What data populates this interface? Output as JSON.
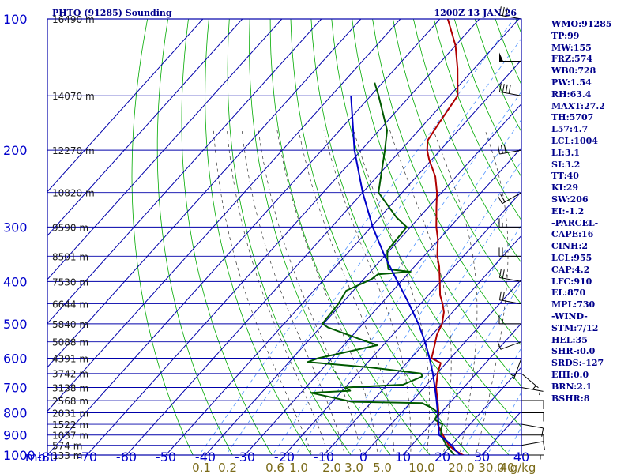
{
  "header": {
    "title": "PHTO (91285) Sounding",
    "time": "1200Z 13 JAN 26"
  },
  "stats": [
    "WMO:91285",
    "TP:99",
    "MW:155",
    "FRZ:574",
    "WB0:728",
    "PW:1.54",
    "RH:63.4",
    "MAXT:27.2",
    "TH:5707",
    "L57:4.7",
    "LCL:1004",
    "LI:3.1",
    "SI:3.2",
    "TT:40",
    "KI:29",
    "SW:206",
    "EI:-1.2",
    "-PARCEL-",
    "CAPE:16",
    "CINH:2",
    "LCL:955",
    "CAP:4.2",
    "LFC:910",
    "EL:870",
    "MPL:730",
    "-WIND-",
    "STM:7/12",
    "HEL:35",
    "SHR-:0.0",
    "SRDS:-127",
    "EHI:0.0",
    "BRN:2.1",
    "BSHR:8"
  ],
  "colors": {
    "frame": "#0000aa",
    "temperature": "#b00000",
    "dewpoint": "#005a00",
    "parcel": "#0000c8",
    "dry_adiabat": "#00aa00",
    "moist_adiabat": "#333333",
    "mixing_ratio": "#4a90ff",
    "pressure_label": "#0000cc",
    "mixing_label": "#7a6a18",
    "height_label": "#1a1a1a"
  },
  "chart_data": {
    "type": "skew-t",
    "title": "PHTO (91285) Sounding",
    "valid_time": "1200Z 13 JAN 26",
    "xlabel": "mb",
    "xlim": [
      -80,
      40
    ],
    "ylim": [
      1000,
      100
    ],
    "pressure_ticks": [
      100,
      200,
      300,
      400,
      500,
      600,
      700,
      800,
      900,
      1000
    ],
    "temperature_ticks": [
      -80,
      -70,
      -60,
      -50,
      -40,
      -30,
      -20,
      -10,
      0,
      10,
      20,
      30,
      40
    ],
    "mixing_ratio_labels": [
      "0.1",
      "0.2",
      "0.6",
      "1.0",
      "2.0",
      "3.0",
      "5.0",
      "10.0",
      "20.0",
      "30.0",
      "40",
      "g/kg"
    ],
    "height_labels": [
      {
        "p": 100,
        "label": "16490 m"
      },
      {
        "p": 150,
        "label": "14070 m"
      },
      {
        "p": 200,
        "label": "12270 m"
      },
      {
        "p": 250,
        "label": "10820 m"
      },
      {
        "p": 300,
        "label": "9590 m"
      },
      {
        "p": 350,
        "label": "8501 m"
      },
      {
        "p": 400,
        "label": "7530 m"
      },
      {
        "p": 450,
        "label": "6644 m"
      },
      {
        "p": 500,
        "label": "5840 m"
      },
      {
        "p": 550,
        "label": "5088 m"
      },
      {
        "p": 600,
        "label": "4391 m"
      },
      {
        "p": 650,
        "label": "3742 m"
      },
      {
        "p": 700,
        "label": "3138 m"
      },
      {
        "p": 750,
        "label": "2568 m"
      },
      {
        "p": 800,
        "label": "2031 m"
      },
      {
        "p": 850,
        "label": "1522 m"
      },
      {
        "p": 900,
        "label": "1037 m"
      },
      {
        "p": 950,
        "label": "574 m"
      },
      {
        "p": 1000,
        "label": "133 m"
      }
    ],
    "series": [
      {
        "name": "Temperature",
        "points": [
          [
            1005,
            26.2
          ],
          [
            1000,
            25.2
          ],
          [
            975,
            22.0
          ],
          [
            950,
            19.4
          ],
          [
            925,
            17.5
          ],
          [
            900,
            15.6
          ],
          [
            870,
            13.3
          ],
          [
            850,
            11.8
          ],
          [
            800,
            9.4
          ],
          [
            760,
            7.0
          ],
          [
            700,
            3.0
          ],
          [
            650,
            0.2
          ],
          [
            615,
            -1.4
          ],
          [
            600,
            -4.8
          ],
          [
            585,
            -5.6
          ],
          [
            560,
            -7.0
          ],
          [
            530,
            -8.8
          ],
          [
            500,
            -10.0
          ],
          [
            470,
            -12.2
          ],
          [
            450,
            -14.4
          ],
          [
            430,
            -17.0
          ],
          [
            400,
            -20.2
          ],
          [
            370,
            -23.7
          ],
          [
            350,
            -26.6
          ],
          [
            320,
            -30.3
          ],
          [
            300,
            -33.5
          ],
          [
            270,
            -38.0
          ],
          [
            250,
            -41.2
          ],
          [
            230,
            -45.2
          ],
          [
            210,
            -50.7
          ],
          [
            200,
            -53.3
          ],
          [
            190,
            -55.4
          ],
          [
            175,
            -56.4
          ],
          [
            150,
            -58.0
          ],
          [
            130,
            -64.2
          ],
          [
            115,
            -70.0
          ],
          [
            100,
            -78.0
          ]
        ]
      },
      {
        "name": "Dewpoint",
        "points": [
          [
            1005,
            24.2
          ],
          [
            1000,
            23.0
          ],
          [
            975,
            20.9
          ],
          [
            950,
            18.8
          ],
          [
            925,
            17.0
          ],
          [
            900,
            15.1
          ],
          [
            870,
            13.7
          ],
          [
            850,
            13.0
          ],
          [
            830,
            10.0
          ],
          [
            800,
            9.4
          ],
          [
            780,
            6.6
          ],
          [
            760,
            3.0
          ],
          [
            755,
            -15.0
          ],
          [
            720,
            -27.5
          ],
          [
            712,
            -18.0
          ],
          [
            700,
            -20.0
          ],
          [
            690,
            -6.0
          ],
          [
            660,
            -3.0
          ],
          [
            650,
            -4.0
          ],
          [
            630,
            -18.0
          ],
          [
            612,
            -35.3
          ],
          [
            600,
            -33.5
          ],
          [
            560,
            -21.5
          ],
          [
            540,
            -28.0
          ],
          [
            510,
            -38.0
          ],
          [
            500,
            -40.3
          ],
          [
            480,
            -40.5
          ],
          [
            450,
            -40.8
          ],
          [
            420,
            -41.8
          ],
          [
            395,
            -38.0
          ],
          [
            385,
            -37.5
          ],
          [
            380,
            -29.8
          ],
          [
            375,
            -36.0
          ],
          [
            360,
            -38.0
          ],
          [
            340,
            -40.5
          ],
          [
            300,
            -41.0
          ],
          [
            285,
            -45.8
          ],
          [
            250,
            -56.0
          ],
          [
            200,
            -64.0
          ],
          [
            180,
            -68.0
          ],
          [
            150,
            -78.0
          ],
          [
            140,
            -82.0
          ]
        ]
      },
      {
        "name": "Parcel",
        "points": [
          [
            1012,
            26.0
          ],
          [
            1000,
            24.5
          ],
          [
            975,
            22.2
          ],
          [
            955,
            20.6
          ],
          [
            925,
            17.6
          ],
          [
            900,
            14.6
          ],
          [
            850,
            12.0
          ],
          [
            800,
            9.2
          ],
          [
            750,
            6.1
          ],
          [
            700,
            2.7
          ],
          [
            650,
            -1.0
          ],
          [
            600,
            -5.3
          ],
          [
            550,
            -10.2
          ],
          [
            500,
            -16.0
          ],
          [
            450,
            -22.9
          ],
          [
            400,
            -30.9
          ],
          [
            350,
            -39.9
          ],
          [
            300,
            -49.6
          ],
          [
            250,
            -60.0
          ],
          [
            200,
            -71.7
          ],
          [
            150,
            -85.0
          ]
        ]
      }
    ],
    "wind_barbs": [
      {
        "p": 1000,
        "dir": 90,
        "kt": 5
      },
      {
        "p": 950,
        "dir": 80,
        "kt": 10
      },
      {
        "p": 900,
        "dir": 90,
        "kt": 10
      },
      {
        "p": 850,
        "dir": 100,
        "kt": 10
      },
      {
        "p": 800,
        "dir": 90,
        "kt": 10
      },
      {
        "p": 750,
        "dir": 90,
        "kt": 10
      },
      {
        "p": 700,
        "dir": 100,
        "kt": 5
      },
      {
        "p": 650,
        "dir": 130,
        "kt": 5
      },
      {
        "p": 600,
        "dir": 200,
        "kt": 5
      },
      {
        "p": 550,
        "dir": 250,
        "kt": 10
      },
      {
        "p": 500,
        "dir": 270,
        "kt": 15
      },
      {
        "p": 450,
        "dir": 280,
        "kt": 20
      },
      {
        "p": 400,
        "dir": 280,
        "kt": 25
      },
      {
        "p": 350,
        "dir": 270,
        "kt": 25
      },
      {
        "p": 300,
        "dir": 270,
        "kt": 15
      },
      {
        "p": 250,
        "dir": 240,
        "kt": 20
      },
      {
        "p": 200,
        "dir": 260,
        "kt": 30
      },
      {
        "p": 150,
        "dir": 280,
        "kt": 40
      },
      {
        "p": 125,
        "dir": 270,
        "kt": 50
      },
      {
        "p": 100,
        "dir": 280,
        "kt": 30
      }
    ]
  }
}
